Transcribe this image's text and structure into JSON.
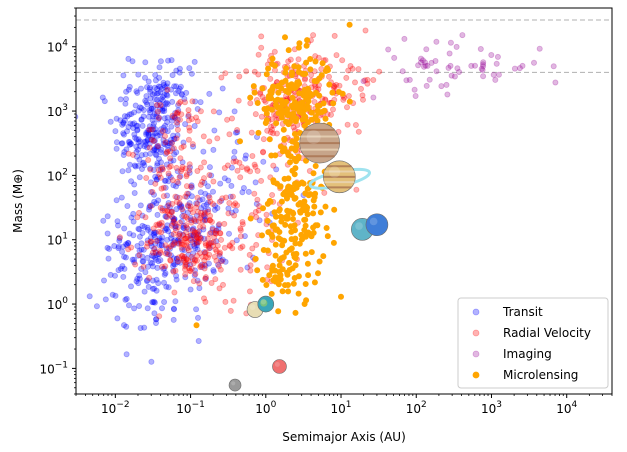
{
  "chart_data": {
    "type": "scatter",
    "xlabel": "Semimajor Axis (AU)",
    "ylabel": "Mass (M⊕)",
    "xscale": "log",
    "yscale": "log",
    "xlim": [
      0.003,
      40000
    ],
    "ylim": [
      0.04,
      40000
    ],
    "x_ticks": [
      {
        "value": 0.01,
        "base": "10",
        "exp": "−2"
      },
      {
        "value": 0.1,
        "base": "10",
        "exp": "−1"
      },
      {
        "value": 1,
        "base": "10",
        "exp": "0"
      },
      {
        "value": 10,
        "base": "10",
        "exp": "1"
      },
      {
        "value": 100,
        "base": "10",
        "exp": "2"
      },
      {
        "value": 1000,
        "base": "10",
        "exp": "3"
      },
      {
        "value": 10000,
        "base": "10",
        "exp": "4"
      }
    ],
    "y_ticks": [
      {
        "value": 0.1,
        "base": "10",
        "exp": "−1"
      },
      {
        "value": 1,
        "base": "10",
        "exp": "0"
      },
      {
        "value": 10,
        "base": "10",
        "exp": "1"
      },
      {
        "value": 100,
        "base": "10",
        "exp": "2"
      },
      {
        "value": 1000,
        "base": "10",
        "exp": "3"
      },
      {
        "value": 10000,
        "base": "10",
        "exp": "4"
      }
    ],
    "reference_lines": [
      {
        "y": 4000,
        "style": "dashed",
        "color": "#b0b0b0"
      },
      {
        "y": 26000,
        "style": "dashed",
        "color": "#b0b0b0"
      }
    ],
    "legend_position": "lower right",
    "series": [
      {
        "name": "Transit",
        "color": "#0000ff",
        "filled": false,
        "clusters": [
          {
            "x": 0.03,
            "y": 500,
            "sx": 0.25,
            "sy": 0.45,
            "n": 230
          },
          {
            "x": 0.06,
            "y": 12,
            "sx": 0.35,
            "sy": 0.45,
            "n": 200
          },
          {
            "x": 0.03,
            "y": 3,
            "sx": 0.35,
            "sy": 0.5,
            "n": 110
          },
          {
            "x": 0.2,
            "y": 60,
            "sx": 0.4,
            "sy": 0.6,
            "n": 70
          },
          {
            "x": 0.05,
            "y": 2500,
            "sx": 0.25,
            "sy": 0.25,
            "n": 50
          }
        ]
      },
      {
        "name": "Radial Velocity",
        "color": "#ff0000",
        "filled": false,
        "clusters": [
          {
            "x": 2,
            "y": 1200,
            "sx": 0.35,
            "sy": 0.45,
            "n": 200
          },
          {
            "x": 0.1,
            "y": 9,
            "sx": 0.3,
            "sy": 0.35,
            "n": 190
          },
          {
            "x": 0.07,
            "y": 250,
            "sx": 0.25,
            "sy": 0.45,
            "n": 90
          },
          {
            "x": 0.4,
            "y": 30,
            "sx": 0.5,
            "sy": 0.7,
            "n": 110
          },
          {
            "x": 10,
            "y": 3000,
            "sx": 0.3,
            "sy": 0.3,
            "n": 50
          }
        ]
      },
      {
        "name": "Imaging",
        "color": "#9d0f9d",
        "filled": false,
        "clusters": [
          {
            "x": 300,
            "y": 5000,
            "sx": 0.6,
            "sy": 0.2,
            "n": 60
          }
        ]
      },
      {
        "name": "Microlensing",
        "color": "#ffa500",
        "filled": true,
        "clusters": [
          {
            "x": 2.5,
            "y": 1500,
            "sx": 0.25,
            "sy": 0.35,
            "n": 190
          },
          {
            "x": 2.5,
            "y": 30,
            "sx": 0.2,
            "sy": 0.6,
            "n": 180
          },
          {
            "x": 1.5,
            "y": 4,
            "sx": 0.15,
            "sy": 0.3,
            "n": 40
          }
        ],
        "extra_points": [
          {
            "x": 0.12,
            "y": 0.47
          },
          {
            "x": 10,
            "y": 1.3
          },
          {
            "x": 13,
            "y": 22000
          },
          {
            "x": 1.8,
            "y": 14000
          }
        ]
      }
    ],
    "planets": [
      {
        "name": "Mercury",
        "x": 0.39,
        "y": 0.055,
        "color": "#9a9a9a",
        "ring": false
      },
      {
        "name": "Venus",
        "x": 0.72,
        "y": 0.82,
        "color": "#e8ddb4",
        "ring": false
      },
      {
        "name": "Earth",
        "x": 1.0,
        "y": 1.0,
        "color": "#3aa6b9",
        "ring": false
      },
      {
        "name": "Mars",
        "x": 1.52,
        "y": 0.107,
        "color": "#f07070",
        "ring": false
      },
      {
        "name": "Jupiter",
        "x": 5.2,
        "y": 318,
        "color": "#c7a58a",
        "ring": false
      },
      {
        "name": "Saturn",
        "x": 9.5,
        "y": 95,
        "color": "#e3c07a",
        "ring": true
      },
      {
        "name": "Uranus",
        "x": 19.2,
        "y": 14.5,
        "color": "#5fb4c8",
        "ring": false
      },
      {
        "name": "Neptune",
        "x": 30,
        "y": 17.1,
        "color": "#3f7ed8",
        "ring": false
      }
    ]
  }
}
